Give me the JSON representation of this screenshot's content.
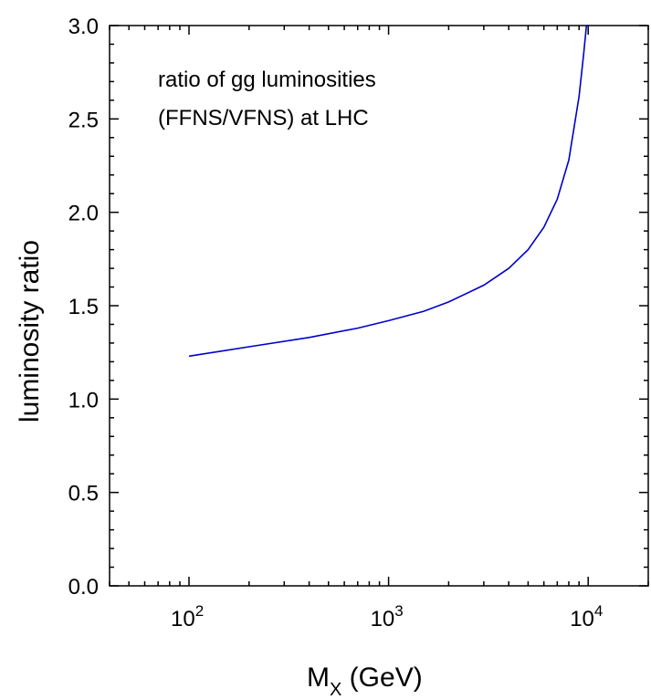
{
  "chart_data": {
    "type": "line",
    "annotation": [
      "ratio of gg luminosities",
      "(FFNS/VFNS) at LHC"
    ],
    "xlabel": {
      "main": "M",
      "sub": "X",
      "unit": " (GeV)"
    },
    "ylabel": "luminosity ratio",
    "x_scale": "log",
    "xlim": [
      40,
      20000
    ],
    "ylim": [
      0.0,
      3.0
    ],
    "y_ticks": [
      "0.0",
      "0.5",
      "1.0",
      "1.5",
      "2.0",
      "2.5",
      "3.0"
    ],
    "x_ticks": [
      {
        "base": "10",
        "exp": "2"
      },
      {
        "base": "10",
        "exp": "3"
      },
      {
        "base": "10",
        "exp": "4"
      }
    ],
    "grid": false,
    "series": [
      {
        "color": "#0000cc",
        "x": [
          100,
          200,
          400,
          700,
          1000,
          1500,
          2000,
          3000,
          4000,
          5000,
          6000,
          7000,
          8000,
          9000,
          9500,
          9800,
          10000
        ],
        "y": [
          1.23,
          1.28,
          1.33,
          1.38,
          1.42,
          1.47,
          1.52,
          1.61,
          1.7,
          1.8,
          1.92,
          2.07,
          2.28,
          2.62,
          2.85,
          3.0,
          3.0
        ]
      }
    ]
  }
}
